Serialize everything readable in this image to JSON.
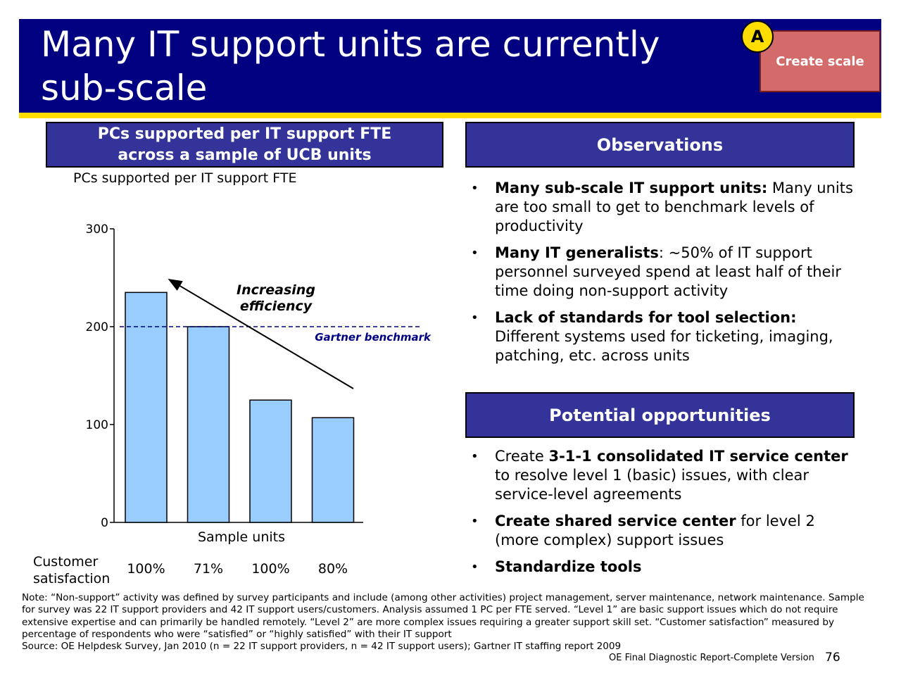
{
  "header": {
    "title_line1": "Many IT support units are currently",
    "title_line2": "sub-scale",
    "badge_letter": "A",
    "tag_label": "Create scale"
  },
  "chart_panel": {
    "heading_line1": "PCs supported per IT support FTE",
    "heading_line2": "across a sample of UCB units",
    "subtitle": "PCs supported per IT support FTE"
  },
  "chart_data": {
    "type": "bar",
    "categories": [
      "",
      "",
      "",
      ""
    ],
    "values": [
      235,
      200,
      125,
      107
    ],
    "ylim": [
      0,
      300
    ],
    "yticks": [
      "0",
      "100",
      "200",
      "300"
    ],
    "xlabel": "Sample units",
    "ylabel": "",
    "bar_color": "#99ccff",
    "benchmark": {
      "value": 200,
      "label": "Gartner benchmark",
      "color": "#000080"
    },
    "annotation_line1": "Increasing",
    "annotation_line2": "efficiency",
    "satisfaction_label_line1": "Customer",
    "satisfaction_label_line2": "satisfaction",
    "satisfaction": [
      "100%",
      "71%",
      "100%",
      "80%"
    ],
    "grid": false
  },
  "observations": {
    "heading": "Observations",
    "items": [
      {
        "bold": "Many sub-scale IT support units:",
        "text": " Many units are too small to get to benchmark levels of productivity"
      },
      {
        "bold": "Many IT generalists",
        "text": ": ~50% of IT support personnel surveyed spend at least half of their time doing non-support activity"
      },
      {
        "bold": "Lack of standards for tool selection:",
        "text": " Different systems used for ticketing, imaging, patching, etc. across units"
      }
    ]
  },
  "opportunities": {
    "heading": "Potential opportunities",
    "items": [
      {
        "pre": "Create ",
        "bold": "3-1-1 consolidated IT service center",
        "text": " to resolve level 1 (basic) issues, with clear service-level agreements"
      },
      {
        "pre": "",
        "bold": "Create shared service center",
        "text": " for level 2 (more complex) support issues"
      },
      {
        "pre": "",
        "bold": "Standardize tools",
        "text": ""
      }
    ]
  },
  "note": "Note: “Non-support” activity was defined by survey participants and include (among other activities) project management, server maintenance, network maintenance. Sample for survey was 22 IT support providers and 42 IT support users/customers. Analysis assumed 1 PC per FTE served. “Level 1” are basic support issues which do not require extensive expertise and can primarily be handled remotely. “Level 2” are more complex issues requiring a greater support skill set. “Customer satisfaction” measured by percentage of respondents who were “satisfied” or “highly satisfied” with their IT support",
  "source": "Source: OE Helpdesk Survey, Jan 2010 (n = 22 IT support providers, n = 42 IT support users); Gartner IT staffing report 2009",
  "footer": {
    "label": "OE Final Diagnostic Report-Complete Version",
    "page_number": "76"
  }
}
